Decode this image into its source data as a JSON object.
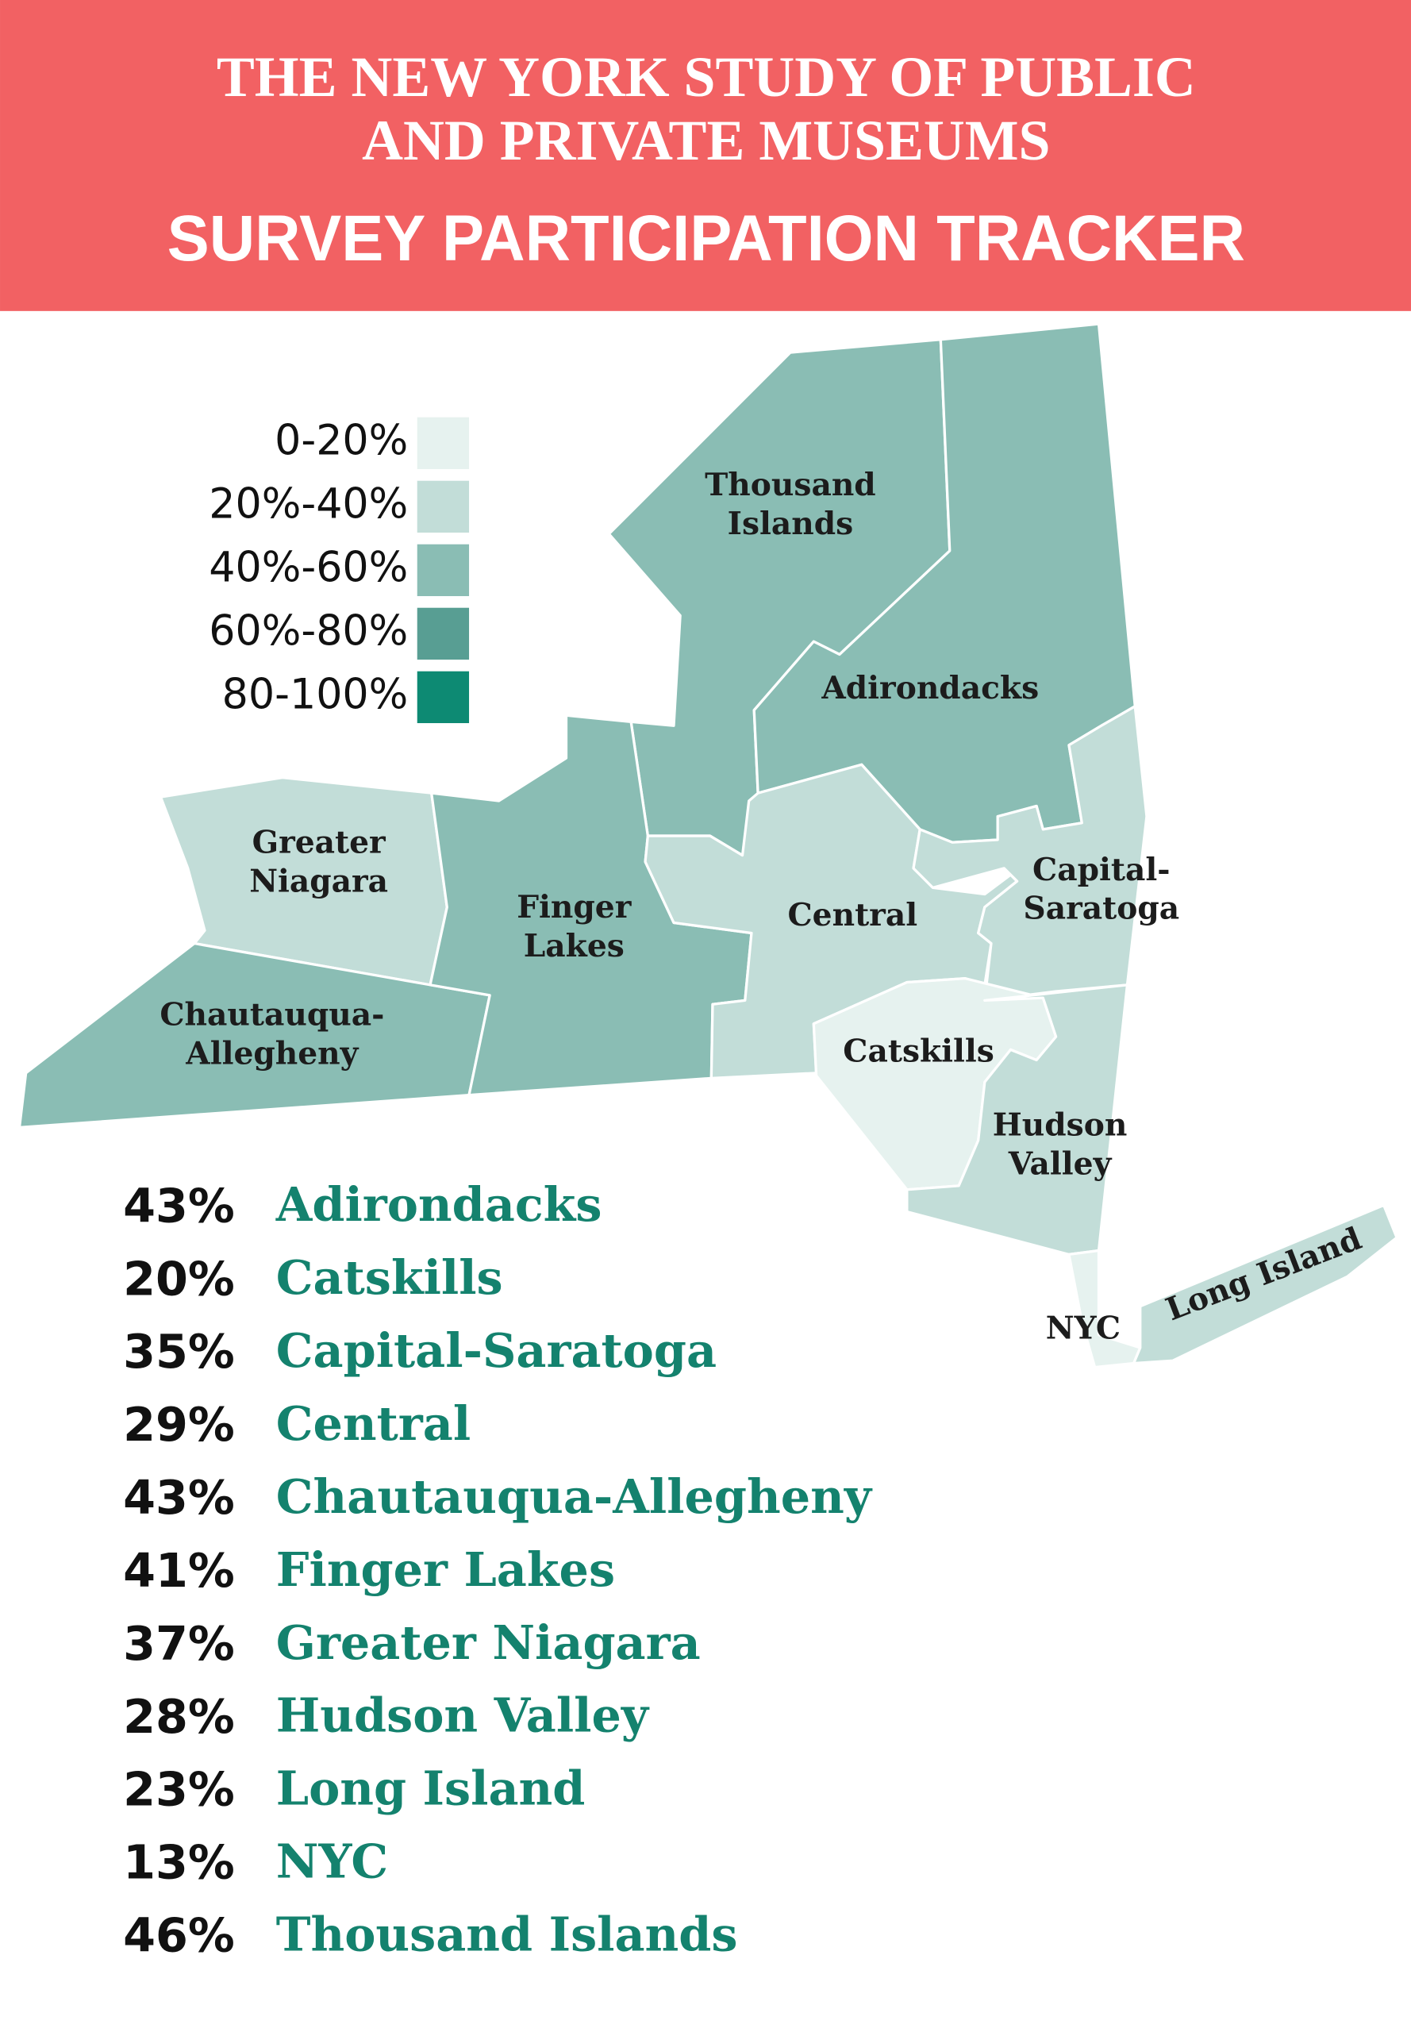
{
  "header": {
    "title_lines": [
      "THE NEW YORK STUDY OF PUBLIC",
      "AND PRIVATE MUSEUMS"
    ],
    "subtitle": "SURVEY PARTICIPATION TRACKER"
  },
  "legend": [
    {
      "label": "0-20%",
      "color": "#e6f2ef"
    },
    {
      "label": "20%-40%",
      "color": "#c2ddd8"
    },
    {
      "label": "40%-60%",
      "color": "#8abdb4"
    },
    {
      "label": "60%-80%",
      "color": "#589e93"
    },
    {
      "label": "80-100%",
      "color": "#0d8a73"
    }
  ],
  "regions": [
    {
      "label": [
        "Thousand",
        "Islands"
      ],
      "color": "#8abdb4"
    },
    {
      "label": [
        "Adirondacks"
      ],
      "color": "#8abdb4"
    },
    {
      "label": [
        "Greater",
        "Niagara"
      ],
      "color": "#c2ddd8"
    },
    {
      "label": [
        "Chautauqua-",
        "Allegheny"
      ],
      "color": "#8abdb4"
    },
    {
      "label": [
        "Finger",
        "Lakes"
      ],
      "color": "#8abdb4"
    },
    {
      "label": [
        "Central"
      ],
      "color": "#c2ddd8"
    },
    {
      "label": [
        "Capital-",
        "Saratoga"
      ],
      "color": "#c2ddd8"
    },
    {
      "label": [
        "Catskills"
      ],
      "color": "#e6f2ef"
    },
    {
      "label": [
        "Hudson",
        "Valley"
      ],
      "color": "#c2ddd8"
    },
    {
      "label": [
        "NYC"
      ],
      "color": "#e6f2ef"
    },
    {
      "label": [
        "Long Island"
      ],
      "color": "#c2ddd8"
    }
  ],
  "list": [
    {
      "percent": "43%",
      "name": "Adirondacks"
    },
    {
      "percent": "20%",
      "name": "Catskills"
    },
    {
      "percent": "35%",
      "name": "Capital-Saratoga"
    },
    {
      "percent": "29%",
      "name": "Central"
    },
    {
      "percent": "43%",
      "name": "Chautauqua-Allegheny"
    },
    {
      "percent": "41%",
      "name": "Finger Lakes"
    },
    {
      "percent": "37%",
      "name": "Greater Niagara"
    },
    {
      "percent": "28%",
      "name": "Hudson Valley"
    },
    {
      "percent": "23%",
      "name": "Long Island"
    },
    {
      "percent": "13%",
      "name": "NYC"
    },
    {
      "percent": "46%",
      "name": "Thousand Islands"
    }
  ]
}
